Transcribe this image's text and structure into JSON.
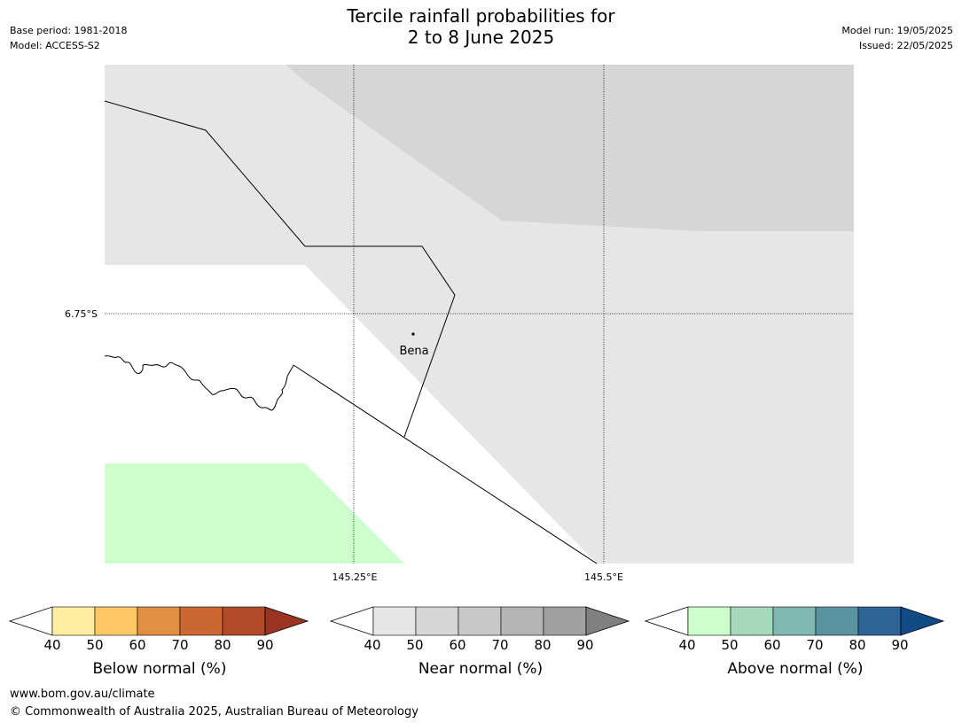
{
  "title": {
    "line1": "Tercile rainfall probabilities for",
    "line2": "2 to 8 June 2025"
  },
  "meta": {
    "base_period": "Base period: 1981-2018",
    "model": "Model: ACCESS-S2",
    "model_run": "Model run: 19/05/2025",
    "issued": "Issued: 22/05/2025"
  },
  "map": {
    "lat_label": "6.75°S",
    "lon_labels": [
      "145.25°E",
      "145.5°E"
    ],
    "place_label": "Bena",
    "category_colors": {
      "near_normal_40_50": "#e6e6e6",
      "near_normal_50_60": "#d6d6d6",
      "above_normal_40_50": "#ccffcc"
    }
  },
  "colorbars": [
    {
      "name": "below",
      "label": "Below normal (%)",
      "ticks": [
        "40",
        "50",
        "60",
        "70",
        "80",
        "90"
      ],
      "colors": [
        "#ffffff",
        "#ffeda0",
        "#fec965",
        "#e08f43",
        "#cc6633",
        "#b04a28",
        "#9a3322"
      ]
    },
    {
      "name": "near",
      "label": "Near normal (%)",
      "ticks": [
        "40",
        "50",
        "60",
        "70",
        "80",
        "90"
      ],
      "colors": [
        "#ffffff",
        "#e6e6e6",
        "#d6d6d6",
        "#c8c8c8",
        "#b4b4b4",
        "#a0a0a0",
        "#808080"
      ]
    },
    {
      "name": "above",
      "label": "Above normal (%)",
      "ticks": [
        "40",
        "50",
        "60",
        "70",
        "80",
        "90"
      ],
      "colors": [
        "#ffffff",
        "#ccffcc",
        "#a6d8bb",
        "#7fb8b0",
        "#5a93a0",
        "#2f6496",
        "#114a85"
      ]
    }
  ],
  "footer": {
    "url": "www.bom.gov.au/climate",
    "copyright": "© Commonwealth of Australia 2025, Australian Bureau of Meteorology"
  }
}
